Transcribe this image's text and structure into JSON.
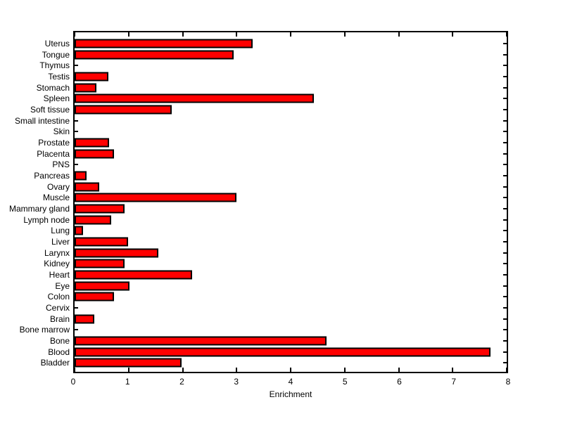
{
  "chart_data": {
    "type": "bar",
    "orientation": "horizontal",
    "title": "",
    "xlabel": "Enrichment",
    "ylabel": "",
    "categories": [
      "Uterus",
      "Tongue",
      "Thymus",
      "Testis",
      "Stomach",
      "Spleen",
      "Soft tissue",
      "Small intestine",
      "Skin",
      "Prostate",
      "Placenta",
      "PNS",
      "Pancreas",
      "Ovary",
      "Muscle",
      "Mammary gland",
      "Lymph node",
      "Lung",
      "Liver",
      "Larynx",
      "Kidney",
      "Heart",
      "Eye",
      "Colon",
      "Cervix",
      "Brain",
      "Bone marrow",
      "Bone",
      "Blood",
      "Bladder"
    ],
    "values": [
      3.3,
      2.95,
      0,
      0.63,
      0.4,
      4.43,
      1.8,
      0,
      0,
      0.64,
      0.73,
      0,
      0.22,
      0.46,
      3.0,
      0.92,
      0.68,
      0.16,
      0.99,
      1.55,
      0.93,
      2.17,
      1.02,
      0.73,
      0,
      0.37,
      0,
      4.67,
      7.7,
      1.98
    ],
    "xlim": [
      0,
      8
    ],
    "xticks": [
      0,
      1,
      2,
      3,
      4,
      5,
      6,
      7,
      8
    ],
    "grid": false,
    "legend": "none",
    "bar_color": "#FF0000",
    "bar_edge_color": "#000000",
    "axis_color": "#000000",
    "background": "#FFFFFF"
  }
}
